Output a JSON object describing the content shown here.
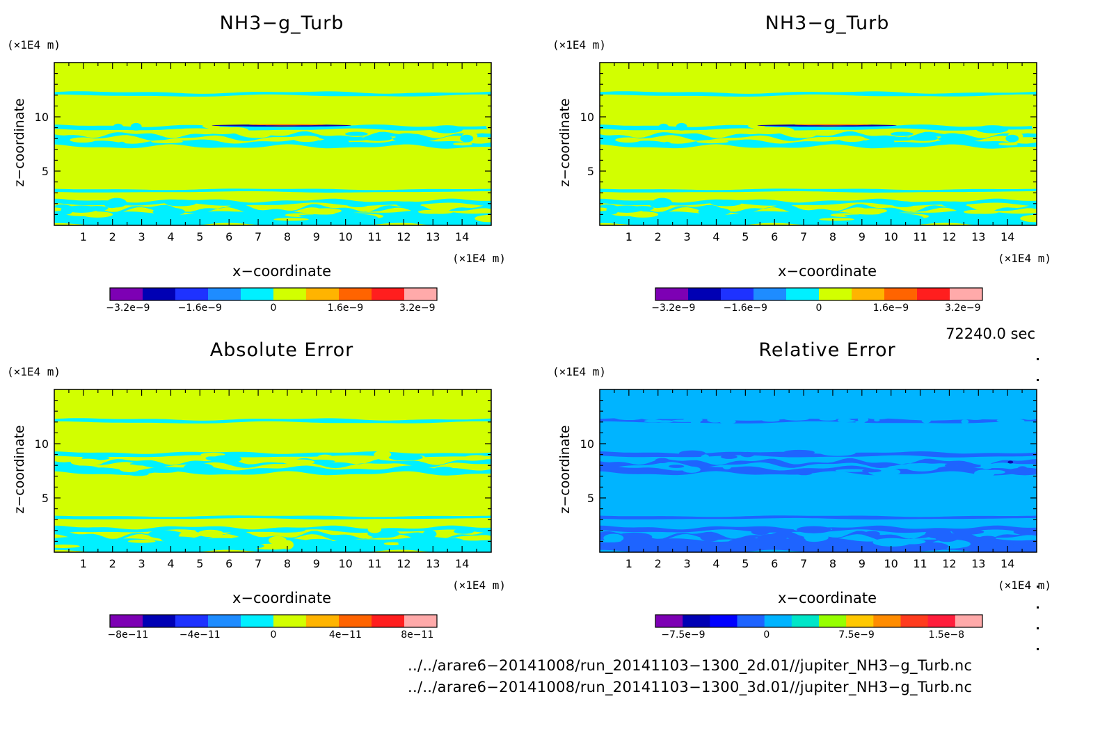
{
  "colors": {
    "background": "#d2ff00",
    "cyan": "#00f0ff",
    "light_blue": "#00b4ff",
    "mid_blue": "#1e64ff",
    "dark_purple": "#1000aa",
    "orange": "#ff8c00"
  },
  "panels": [
    {
      "id": "top-left",
      "title": "NH3−g_Turb",
      "ylabel": "z−coordinate",
      "xlabel": "x−coordinate",
      "yunit": "(×1E4 m)",
      "xunit": "(×1E4 m)",
      "x_ticks": [
        "1",
        "2",
        "3",
        "4",
        "5",
        "6",
        "7",
        "8",
        "9",
        "10",
        "11",
        "12",
        "13",
        "14"
      ],
      "y_ticks": [
        "5",
        "10"
      ],
      "colorbar": {
        "colors": [
          "#7d00b4",
          "#0000b4",
          "#1e32ff",
          "#1e8cff",
          "#00f0ff",
          "#d2ff00",
          "#ffb400",
          "#ff6400",
          "#ff1e1e",
          "#ffaaaa"
        ],
        "tick_labels": [
          "−3.2e−9",
          "−1.6e−9",
          "0",
          "1.6e−9",
          "3.2e−9"
        ]
      }
    },
    {
      "id": "top-right",
      "title": "NH3−g_Turb",
      "ylabel": "z−coordinate",
      "xlabel": "x−coordinate",
      "yunit": "(×1E4 m)",
      "xunit": "(×1E4 m)",
      "x_ticks": [
        "1",
        "2",
        "3",
        "4",
        "5",
        "6",
        "7",
        "8",
        "9",
        "10",
        "11",
        "12",
        "13",
        "14"
      ],
      "y_ticks": [
        "5",
        "10"
      ],
      "colorbar": {
        "colors": [
          "#7d00b4",
          "#0000b4",
          "#1e32ff",
          "#1e8cff",
          "#00f0ff",
          "#d2ff00",
          "#ffb400",
          "#ff6400",
          "#ff1e1e",
          "#ffaaaa"
        ],
        "tick_labels": [
          "−3.2e−9",
          "−1.6e−9",
          "0",
          "1.6e−9",
          "3.2e−9"
        ]
      }
    },
    {
      "id": "bottom-left",
      "title": "Absolute Error",
      "ylabel": "z−coordinate",
      "xlabel": "x−coordinate",
      "yunit": "(×1E4 m)",
      "xunit": "(×1E4 m)",
      "x_ticks": [
        "1",
        "2",
        "3",
        "4",
        "5",
        "6",
        "7",
        "8",
        "9",
        "10",
        "11",
        "12",
        "13",
        "14"
      ],
      "y_ticks": [
        "5",
        "10"
      ],
      "colorbar": {
        "colors": [
          "#7d00b4",
          "#0000b4",
          "#1e32ff",
          "#1e8cff",
          "#00f0ff",
          "#d2ff00",
          "#ffb400",
          "#ff6400",
          "#ff1e1e",
          "#ffaaaa"
        ],
        "tick_labels": [
          "−8e−11",
          "−4e−11",
          "0",
          "4e−11",
          "8e−11"
        ]
      }
    },
    {
      "id": "bottom-right",
      "title": "Relative Error",
      "ylabel": "z−coordinate",
      "xlabel": "x−coordinate",
      "yunit": "(×1E4 m)",
      "xunit": "(×1E4 m)",
      "x_ticks": [
        "1",
        "2",
        "3",
        "4",
        "5",
        "6",
        "7",
        "8",
        "9",
        "10",
        "11",
        "12",
        "13",
        "14"
      ],
      "y_ticks": [
        "5",
        "10"
      ],
      "colorbar": {
        "colors": [
          "#7d00b4",
          "#0000b4",
          "#0000ff",
          "#1e64ff",
          "#00b4ff",
          "#00e6c8",
          "#96ff00",
          "#ffc800",
          "#ff8c00",
          "#ff3c1e",
          "#ff1e3c",
          "#ffaaaa"
        ],
        "tick_labels": [
          "−7.5e−9",
          "0",
          "7.5e−9",
          "1.5e−8"
        ]
      }
    }
  ],
  "info": {
    "time": "72240.0 sec",
    "file1": "../../arare6−20141008/run_20141103−1300_2d.01//jupiter_NH3−g_Turb.nc",
    "file2": "../../arare6−20141008/run_20141103−1300_3d.01//jupiter_NH3−g_Turb.nc"
  },
  "chart_data": [
    {
      "type": "heatmap",
      "title": "NH3−g_Turb",
      "xlabel": "x−coordinate",
      "ylabel": "z−coordinate",
      "xlim": [
        0,
        15
      ],
      "ylim": [
        0,
        15
      ],
      "x_ticks": [
        1,
        2,
        3,
        4,
        5,
        6,
        7,
        8,
        9,
        10,
        11,
        12,
        13,
        14
      ],
      "y_ticks": [
        5,
        10
      ],
      "colorbar_levels": [
        -3.2e-09,
        -1.6e-09,
        0,
        1.6e-09,
        3.2e-09
      ],
      "description_bands_z": [
        [
          0,
          2.5
        ],
        [
          3,
          3.3
        ],
        [
          7,
          9.3
        ],
        [
          12,
          12.3
        ]
      ]
    },
    {
      "type": "heatmap",
      "title": "NH3−g_Turb",
      "xlabel": "x−coordinate",
      "ylabel": "z−coordinate",
      "xlim": [
        0,
        15
      ],
      "ylim": [
        0,
        15
      ],
      "x_ticks": [
        1,
        2,
        3,
        4,
        5,
        6,
        7,
        8,
        9,
        10,
        11,
        12,
        13,
        14
      ],
      "y_ticks": [
        5,
        10
      ],
      "colorbar_levels": [
        -3.2e-09,
        -1.6e-09,
        0,
        1.6e-09,
        3.2e-09
      ],
      "description_bands_z": [
        [
          0,
          2.5
        ],
        [
          3,
          3.3
        ],
        [
          7,
          9.3
        ],
        [
          12,
          12.3
        ]
      ]
    },
    {
      "type": "heatmap",
      "title": "Absolute Error",
      "xlabel": "x−coordinate",
      "ylabel": "z−coordinate",
      "xlim": [
        0,
        15
      ],
      "ylim": [
        0,
        15
      ],
      "x_ticks": [
        1,
        2,
        3,
        4,
        5,
        6,
        7,
        8,
        9,
        10,
        11,
        12,
        13,
        14
      ],
      "y_ticks": [
        5,
        10
      ],
      "colorbar_levels": [
        -8e-11,
        -4e-11,
        0,
        4e-11,
        8e-11
      ],
      "description_bands_z": [
        [
          0,
          2.5
        ],
        [
          3,
          3.3
        ],
        [
          7,
          9.3
        ],
        [
          12,
          12.5
        ]
      ]
    },
    {
      "type": "heatmap",
      "title": "Relative Error",
      "xlabel": "x−coordinate",
      "ylabel": "z−coordinate",
      "xlim": [
        0,
        15
      ],
      "ylim": [
        0,
        15
      ],
      "x_ticks": [
        1,
        2,
        3,
        4,
        5,
        6,
        7,
        8,
        9,
        10,
        11,
        12,
        13,
        14
      ],
      "y_ticks": [
        5,
        10
      ],
      "colorbar_levels": [
        -7.5e-09,
        0,
        7.5e-09,
        1.5e-08
      ],
      "description_bands_z": [
        [
          0,
          2.5
        ],
        [
          3,
          3.3
        ],
        [
          7,
          9.3
        ],
        [
          12,
          12.5
        ]
      ]
    }
  ]
}
